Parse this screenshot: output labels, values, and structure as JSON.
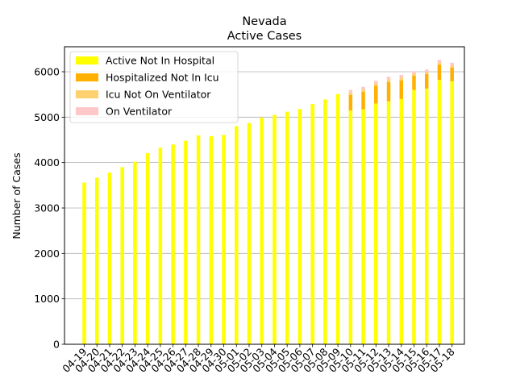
{
  "chart_data": {
    "type": "bar",
    "stacked": true,
    "title": "Nevada",
    "subtitle": "Active Cases",
    "xlabel": "",
    "ylabel": "Number of Cases",
    "ylim": [
      0,
      6550
    ],
    "yticks": [
      0,
      1000,
      2000,
      3000,
      4000,
      5000,
      6000
    ],
    "grid": "horizontal",
    "legend_position": "top-left",
    "categories": [
      "04-19",
      "04-20",
      "04-21",
      "04-22",
      "04-23",
      "04-24",
      "04-25",
      "04-26",
      "04-27",
      "04-28",
      "04-29",
      "04-30",
      "05-01",
      "05-02",
      "05-03",
      "05-04",
      "05-05",
      "05-06",
      "05-07",
      "05-08",
      "05-09",
      "05-10",
      "05-11",
      "05-12",
      "05-13",
      "05-14",
      "05-15",
      "05-16",
      "05-17",
      "05-18"
    ],
    "series": [
      {
        "name": "Active Not In Hospital",
        "color": "#ffff00",
        "values": [
          3560,
          3670,
          3780,
          3900,
          4020,
          4210,
          4330,
          4400,
          4480,
          4600,
          4580,
          4610,
          4800,
          4870,
          4990,
          5050,
          5120,
          5180,
          5290,
          5390,
          5510,
          5150,
          5170,
          5300,
          5350,
          5400,
          5600,
          5630,
          5820,
          5790
        ]
      },
      {
        "name": "Hospitalized Not In Icu",
        "color": "#ffb000",
        "values": [
          0,
          0,
          0,
          0,
          0,
          0,
          0,
          0,
          0,
          0,
          0,
          0,
          0,
          0,
          0,
          0,
          0,
          0,
          0,
          0,
          0,
          340,
          390,
          390,
          420,
          410,
          310,
          320,
          330,
          300
        ]
      },
      {
        "name": "Icu Not On Ventilator",
        "color": "#ffd070",
        "values": [
          0,
          0,
          0,
          0,
          0,
          0,
          0,
          0,
          0,
          0,
          0,
          0,
          0,
          0,
          0,
          0,
          0,
          0,
          0,
          0,
          0,
          50,
          50,
          50,
          60,
          60,
          50,
          50,
          50,
          50
        ]
      },
      {
        "name": "On Ventilator",
        "color": "#ffc8c8",
        "values": [
          0,
          0,
          0,
          0,
          0,
          0,
          0,
          0,
          0,
          0,
          0,
          0,
          0,
          0,
          0,
          0,
          0,
          0,
          0,
          0,
          0,
          60,
          60,
          60,
          60,
          60,
          50,
          50,
          60,
          60
        ]
      }
    ]
  }
}
